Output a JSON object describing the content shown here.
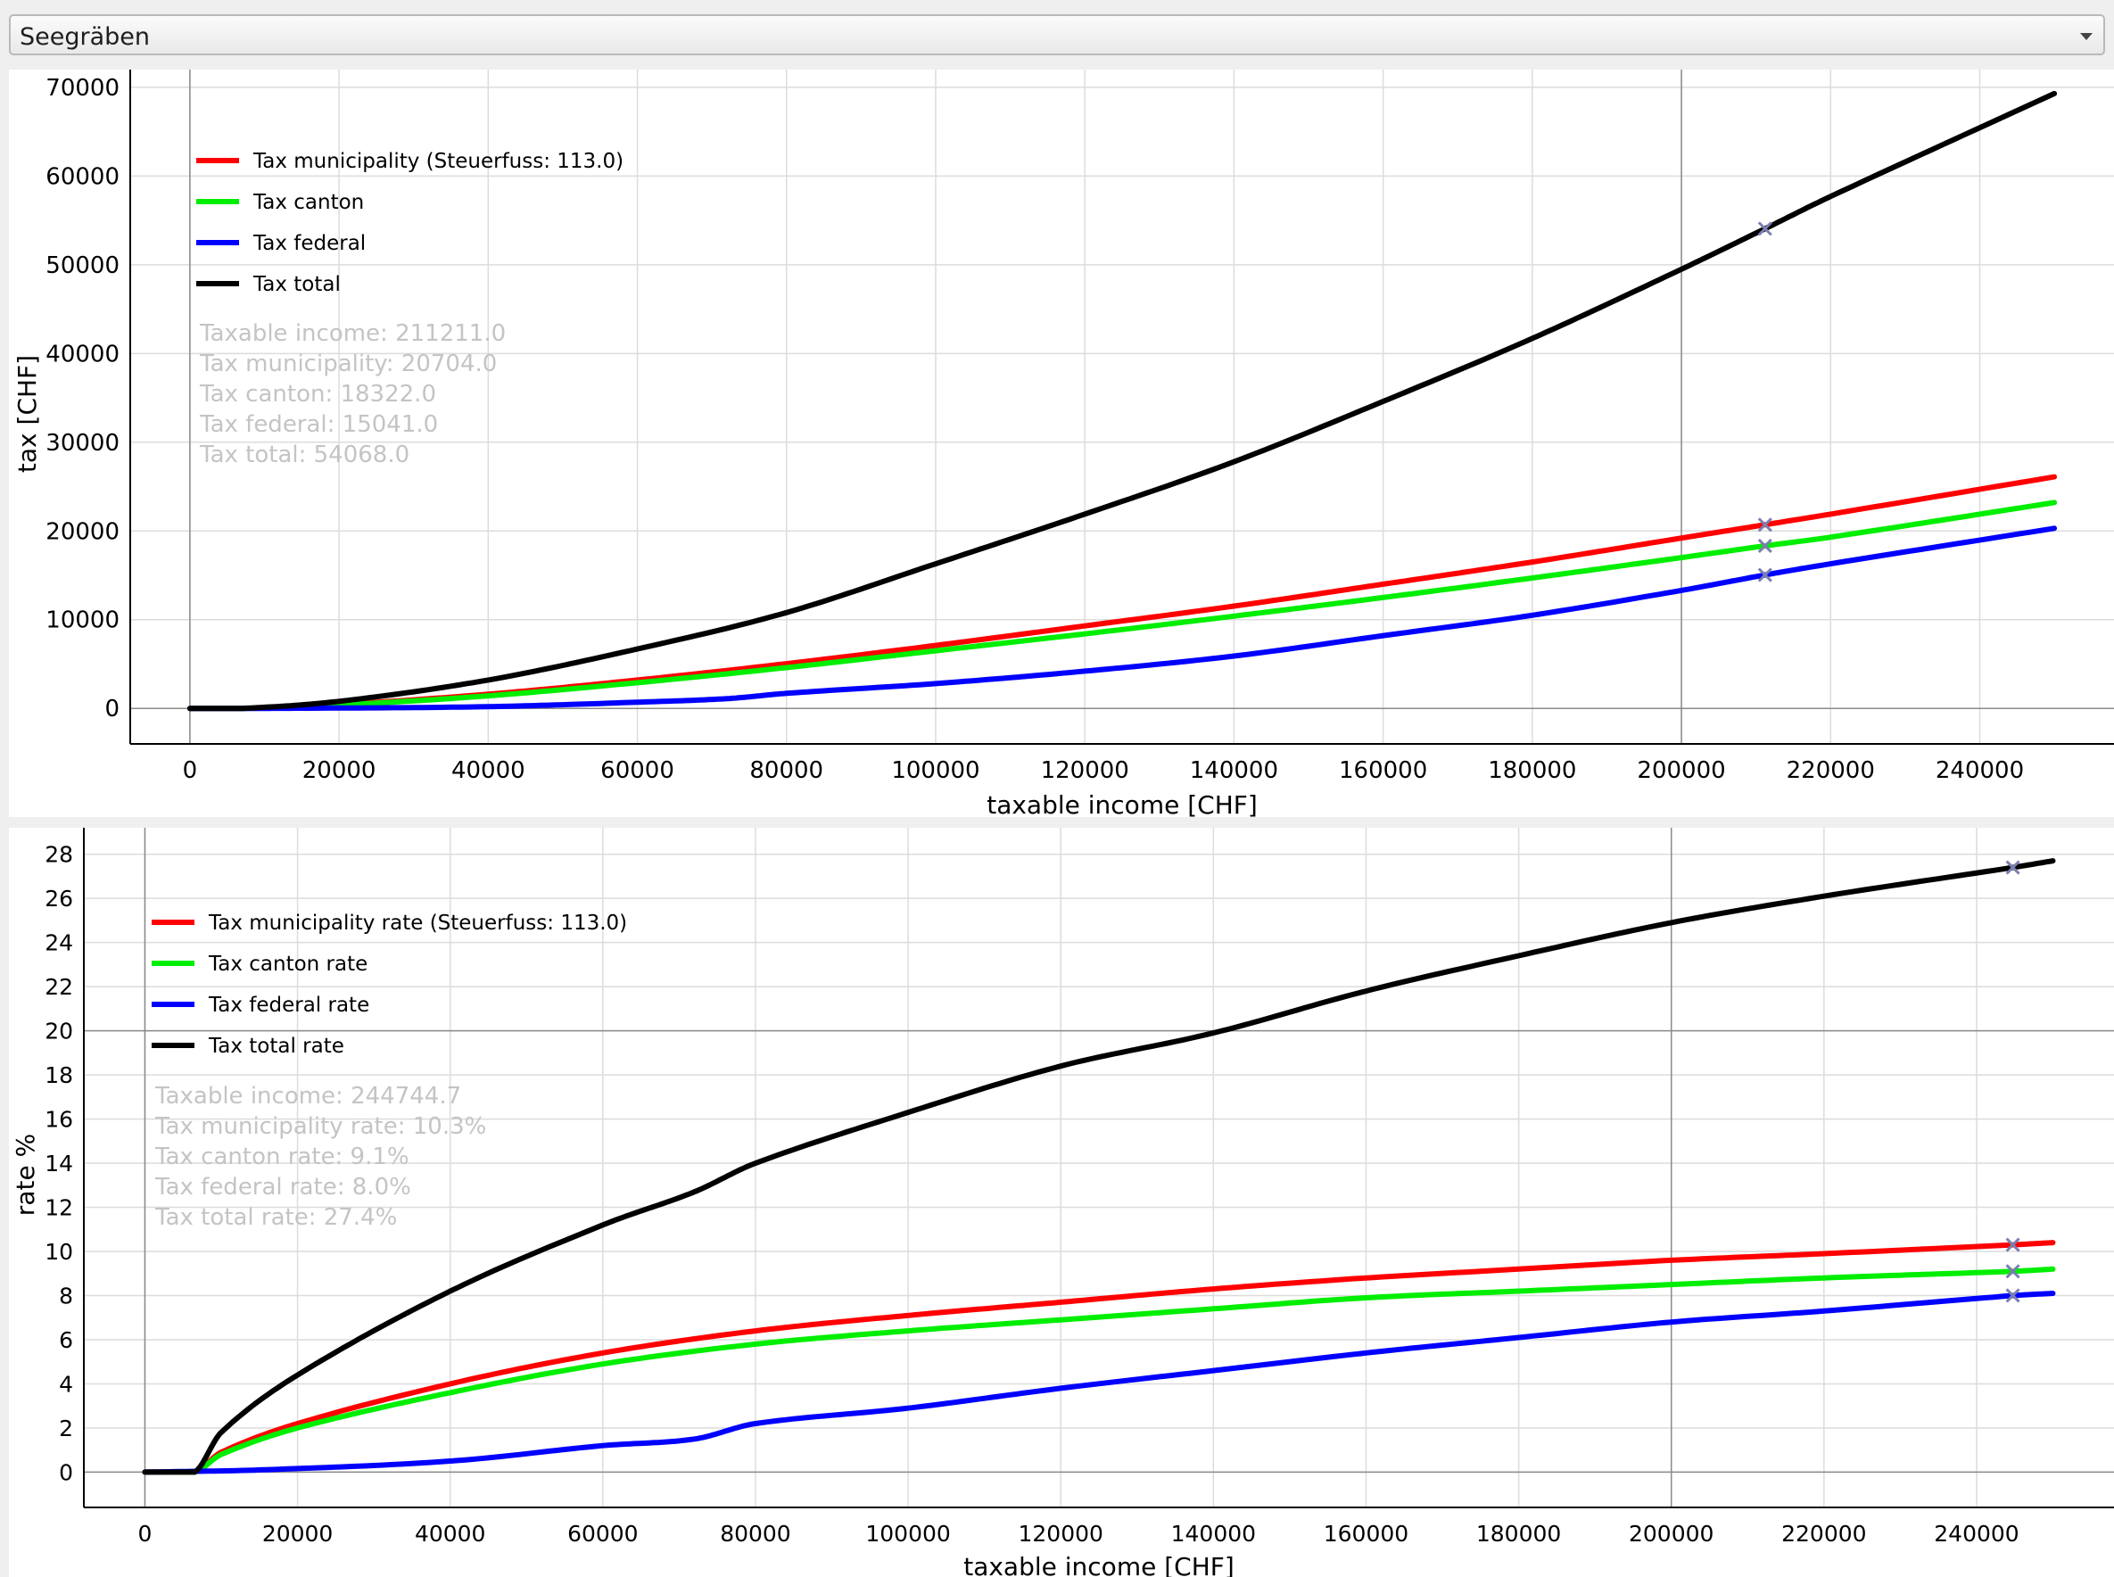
{
  "dropdown": {
    "value": "Seegräben"
  },
  "colors": {
    "municipality": "#ff0000",
    "canton": "#00ee00",
    "federal": "#0000ff",
    "total": "#000000",
    "marker": "#7b7fb0",
    "info_text": "#c4c4c4"
  },
  "chart_data": [
    {
      "type": "line",
      "xlabel": "taxable income [CHF]",
      "ylabel": "tax [CHF]",
      "xlim": [
        -8000,
        258000
      ],
      "ylim": [
        -4000,
        72000
      ],
      "xticks": [
        0,
        20000,
        40000,
        60000,
        80000,
        100000,
        120000,
        140000,
        160000,
        180000,
        200000,
        220000,
        240000
      ],
      "yticks": [
        0,
        10000,
        20000,
        30000,
        40000,
        50000,
        60000,
        70000
      ],
      "axis_x_at": 200000,
      "axis_y_at": 0,
      "grid": true,
      "legend_position": "top-left",
      "marker_x": 211211,
      "series": [
        {
          "name": "Tax municipality (Steuerfuss: 113.0)",
          "color": "#ff0000",
          "x": [
            0,
            7000,
            20000,
            40000,
            60000,
            80000,
            100000,
            120000,
            140000,
            160000,
            180000,
            200000,
            211211,
            220000,
            250000
          ],
          "y": [
            0,
            0,
            430,
            1600,
            3200,
            5040,
            7100,
            9300,
            11530,
            14000,
            16500,
            19200,
            20704,
            21900,
            26100
          ]
        },
        {
          "name": "Tax canton",
          "color": "#00ee00",
          "x": [
            0,
            7000,
            20000,
            40000,
            60000,
            80000,
            100000,
            120000,
            140000,
            160000,
            180000,
            200000,
            211211,
            220000,
            250000
          ],
          "y": [
            0,
            0,
            380,
            1420,
            2900,
            4600,
            6500,
            8400,
            10400,
            12500,
            14700,
            17000,
            18322,
            19300,
            23200
          ]
        },
        {
          "name": "Tax federal",
          "color": "#0000ff",
          "x": [
            0,
            15000,
            40000,
            60000,
            72000,
            80000,
            100000,
            120000,
            140000,
            160000,
            180000,
            200000,
            211211,
            220000,
            250000
          ],
          "y": [
            0,
            20,
            200,
            700,
            1100,
            1700,
            2800,
            4200,
            5900,
            8200,
            10500,
            13300,
            15041,
            16300,
            20300
          ]
        },
        {
          "name": "Tax total",
          "color": "#000000",
          "x": [
            0,
            7000,
            20000,
            40000,
            60000,
            80000,
            100000,
            120000,
            140000,
            160000,
            180000,
            200000,
            211211,
            220000,
            250000
          ],
          "y": [
            0,
            0,
            800,
            3200,
            6700,
            10800,
            16300,
            21900,
            27800,
            34600,
            41700,
            49500,
            54068,
            57700,
            69300
          ]
        }
      ],
      "info": {
        "taxable_income": "Taxable income: 211211.0",
        "municipality": "Tax municipality: 20704.0",
        "canton": "Tax canton: 18322.0",
        "federal": "Tax federal: 15041.0",
        "total": "Tax total: 54068.0"
      }
    },
    {
      "type": "line",
      "xlabel": "taxable income [CHF]",
      "ylabel": "rate %",
      "xlim": [
        -8000,
        258000
      ],
      "ylim": [
        -1.6,
        29.2
      ],
      "xticks": [
        0,
        20000,
        40000,
        60000,
        80000,
        100000,
        120000,
        140000,
        160000,
        180000,
        200000,
        220000,
        240000
      ],
      "yticks": [
        0,
        2,
        4,
        6,
        8,
        10,
        12,
        14,
        16,
        18,
        20,
        22,
        24,
        26,
        28
      ],
      "axis_x_at": 200000,
      "axis_y_at": 20,
      "grid": true,
      "legend_position": "top-left",
      "marker_x": 244744.7,
      "series": [
        {
          "name": "Tax municipality rate (Steuerfuss: 113.0)",
          "color": "#ff0000",
          "x": [
            0,
            6500,
            10000,
            20000,
            40000,
            60000,
            80000,
            100000,
            120000,
            140000,
            160000,
            180000,
            200000,
            220000,
            244744.7,
            250000
          ],
          "y": [
            0,
            0,
            0.9,
            2.2,
            4.0,
            5.4,
            6.4,
            7.1,
            7.7,
            8.3,
            8.8,
            9.2,
            9.6,
            9.9,
            10.3,
            10.4
          ]
        },
        {
          "name": "Tax canton rate",
          "color": "#00ee00",
          "x": [
            0,
            6500,
            10000,
            20000,
            40000,
            60000,
            80000,
            100000,
            120000,
            140000,
            160000,
            180000,
            200000,
            220000,
            244744.7,
            250000
          ],
          "y": [
            0,
            0,
            0.8,
            2.0,
            3.6,
            4.9,
            5.8,
            6.4,
            6.9,
            7.4,
            7.9,
            8.2,
            8.5,
            8.8,
            9.1,
            9.2
          ]
        },
        {
          "name": "Tax federal rate",
          "color": "#0000ff",
          "x": [
            0,
            15000,
            40000,
            60000,
            72000,
            80000,
            100000,
            120000,
            140000,
            160000,
            180000,
            200000,
            220000,
            244744.7,
            250000
          ],
          "y": [
            0,
            0.1,
            0.5,
            1.2,
            1.5,
            2.2,
            2.9,
            3.8,
            4.6,
            5.4,
            6.1,
            6.8,
            7.3,
            8.0,
            8.1
          ]
        },
        {
          "name": "Tax total rate",
          "color": "#000000",
          "x": [
            0,
            6500,
            10000,
            20000,
            40000,
            60000,
            72000,
            80000,
            100000,
            120000,
            140000,
            160000,
            180000,
            200000,
            220000,
            244744.7,
            250000
          ],
          "y": [
            0,
            0,
            1.8,
            4.4,
            8.2,
            11.2,
            12.7,
            14.0,
            16.3,
            18.4,
            19.9,
            21.8,
            23.4,
            24.9,
            26.1,
            27.4,
            27.7
          ]
        }
      ],
      "info": {
        "taxable_income": "Taxable income: 244744.7",
        "municipality": "Tax municipality rate: 10.3%",
        "canton": "Tax canton rate: 9.1%",
        "federal": "Tax federal rate: 8.0%",
        "total": "Tax total rate: 27.4%"
      }
    }
  ]
}
